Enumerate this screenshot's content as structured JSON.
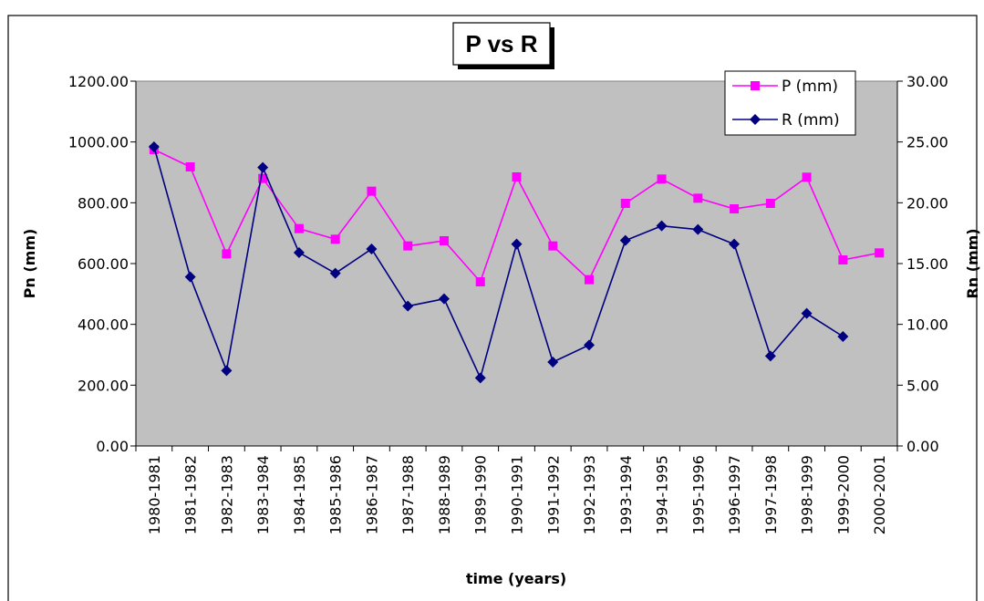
{
  "chart_data": {
    "type": "line",
    "title": "P vs R",
    "xlabel": "time (years)",
    "ylabel": "Pn (mm)",
    "y2label": "Rn (mm)",
    "categories": [
      "1980-1981",
      "1981-1982",
      "1982-1983",
      "1983-1984",
      "1984-1985",
      "1985-1986",
      "1986-1987",
      "1987-1988",
      "1988-1989",
      "1989-1990",
      "1990-1991",
      "1991-1992",
      "1992-1993",
      "1993-1994",
      "1994-1995",
      "1995-1996",
      "1996-1997",
      "1997-1998",
      "1998-1999",
      "1999-2000",
      "2000-2001"
    ],
    "ylim": [
      0,
      1200
    ],
    "y_ticks": [
      "0.00",
      "200.00",
      "400.00",
      "600.00",
      "800.00",
      "1000.00",
      "1200.00"
    ],
    "y2lim": [
      0,
      30
    ],
    "y2_ticks": [
      "0.00",
      "5.00",
      "10.00",
      "15.00",
      "20.00",
      "25.00",
      "30.00"
    ],
    "grid": false,
    "legend_position": "top-right",
    "series": [
      {
        "name": "P (mm)",
        "axis": "left",
        "color": "#ff00ff",
        "marker": "square",
        "values": [
          975,
          918,
          632,
          880,
          715,
          680,
          838,
          658,
          675,
          540,
          885,
          658,
          547,
          798,
          878,
          815,
          780,
          798,
          884,
          612,
          635
        ]
      },
      {
        "name": "R (mm)",
        "axis": "right",
        "color": "#000080",
        "marker": "diamond",
        "values": [
          24.6,
          13.9,
          6.2,
          22.9,
          15.9,
          14.2,
          16.2,
          11.5,
          12.1,
          5.6,
          16.6,
          6.9,
          8.3,
          16.9,
          18.1,
          17.8,
          16.6,
          7.4,
          10.9,
          9.0,
          null
        ]
      }
    ]
  }
}
